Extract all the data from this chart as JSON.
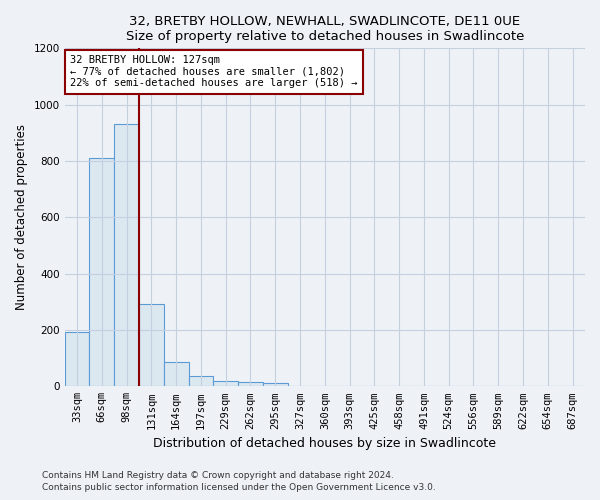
{
  "title": "32, BRETBY HOLLOW, NEWHALL, SWADLINCOTE, DE11 0UE",
  "subtitle": "Size of property relative to detached houses in Swadlincote",
  "xlabel": "Distribution of detached houses by size in Swadlincote",
  "ylabel": "Number of detached properties",
  "bar_color": "#dce8f0",
  "bar_edge_color": "#5b9bd5",
  "bin_labels": [
    "33sqm",
    "66sqm",
    "98sqm",
    "131sqm",
    "164sqm",
    "197sqm",
    "229sqm",
    "262sqm",
    "295sqm",
    "327sqm",
    "360sqm",
    "393sqm",
    "425sqm",
    "458sqm",
    "491sqm",
    "524sqm",
    "556sqm",
    "589sqm",
    "622sqm",
    "654sqm",
    "687sqm"
  ],
  "bar_heights": [
    193,
    810,
    930,
    293,
    85,
    35,
    20,
    15,
    10,
    0,
    0,
    0,
    0,
    0,
    0,
    0,
    0,
    0,
    0,
    0,
    0
  ],
  "vline_x": 2.5,
  "vline_color": "#8b0000",
  "annotation_text": "32 BRETBY HOLLOW: 127sqm\n← 77% of detached houses are smaller (1,802)\n22% of semi-detached houses are larger (518) →",
  "annotation_box_color": "white",
  "annotation_box_edge_color": "#8b0000",
  "ylim": [
    0,
    1200
  ],
  "yticks": [
    0,
    200,
    400,
    600,
    800,
    1000,
    1200
  ],
  "footnote1": "Contains HM Land Registry data © Crown copyright and database right 2024.",
  "footnote2": "Contains public sector information licensed under the Open Government Licence v3.0.",
  "bg_color": "#eef2f7",
  "grid_color": "#c5cfe0",
  "title_fontsize": 9.5,
  "ylabel_fontsize": 8.5,
  "xlabel_fontsize": 9,
  "tick_fontsize": 7.5,
  "annot_fontsize": 7.5
}
